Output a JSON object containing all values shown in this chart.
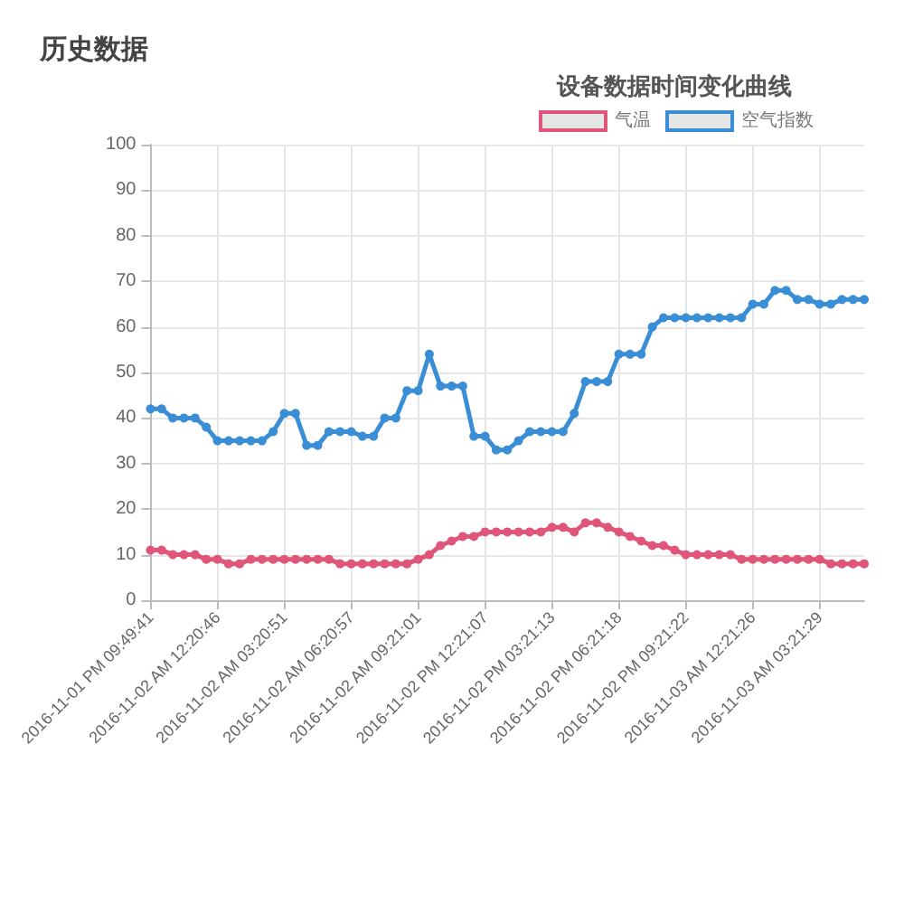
{
  "chart_data": {
    "type": "line",
    "title": "设备数据时间变化曲线",
    "annotations": [
      "历史数据"
    ],
    "categories": [
      "2016-11-01 PM 09:49:41",
      null,
      null,
      null,
      null,
      null,
      "2016-11-02 AM 12:20:46",
      null,
      null,
      null,
      null,
      null,
      "2016-11-02 AM 03:20:51",
      null,
      null,
      null,
      null,
      null,
      "2016-11-02 AM 06:20:57",
      null,
      null,
      null,
      null,
      null,
      "2016-11-02 AM 09:21:01",
      null,
      null,
      null,
      null,
      null,
      "2016-11-02 PM 12:21:07",
      null,
      null,
      null,
      null,
      null,
      "2016-11-02 PM 03:21:13",
      null,
      null,
      null,
      null,
      null,
      "2016-11-02 PM 06:21:18",
      null,
      null,
      null,
      null,
      null,
      "2016-11-02 PM 09:21:22",
      null,
      null,
      null,
      null,
      null,
      "2016-11-03 AM 12:21:26",
      null,
      null,
      null,
      null,
      null,
      "2016-11-03 AM 03:21:29",
      null,
      null,
      null,
      null
    ],
    "series": [
      {
        "name": "气温",
        "color": "#e0557a",
        "values": [
          11,
          11,
          10,
          10,
          10,
          9,
          9,
          8,
          8,
          9,
          9,
          9,
          9,
          9,
          9,
          9,
          9,
          8,
          8,
          8,
          8,
          8,
          8,
          8,
          9,
          10,
          12,
          13,
          14,
          14,
          15,
          15,
          15,
          15,
          15,
          15,
          16,
          16,
          15,
          17,
          17,
          16,
          15,
          14,
          13,
          12,
          12,
          11,
          10,
          10,
          10,
          10,
          10,
          9,
          9,
          9,
          9,
          9,
          9,
          9,
          9,
          8,
          8,
          8,
          8
        ]
      },
      {
        "name": "空气指数",
        "color": "#3a8ed6",
        "values": [
          42,
          42,
          40,
          40,
          40,
          38,
          35,
          35,
          35,
          35,
          35,
          37,
          41,
          41,
          34,
          34,
          37,
          37,
          37,
          36,
          36,
          40,
          40,
          46,
          46,
          54,
          47,
          47,
          47,
          36,
          36,
          33,
          33,
          35,
          37,
          37,
          37,
          37,
          41,
          48,
          48,
          48,
          54,
          54,
          54,
          60,
          62,
          62,
          62,
          62,
          62,
          62,
          62,
          62,
          65,
          65,
          68,
          68,
          66,
          66,
          65,
          65,
          66,
          66,
          66
        ]
      }
    ],
    "ylim": [
      0,
      100
    ],
    "yticks": [
      0,
      10,
      20,
      30,
      40,
      50,
      60,
      70,
      80,
      90,
      100
    ],
    "grid": true,
    "legend": "top",
    "marker": "circle",
    "line_style": "solid"
  }
}
